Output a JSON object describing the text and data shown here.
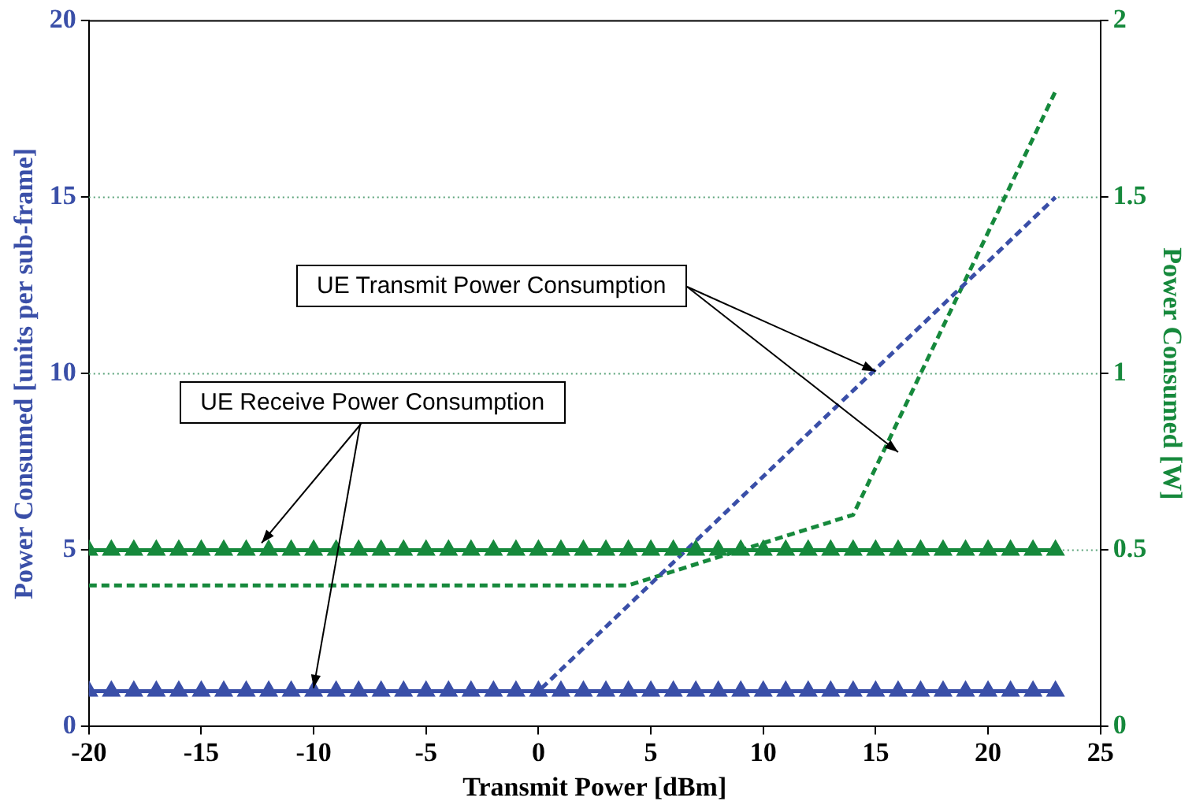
{
  "chart_data": {
    "type": "line",
    "xlabel": "Transmit Power [dBm]",
    "ylabel": "Power Consumed [units per sub-frame]",
    "y2label": "Power Consumed [W]",
    "xlim": [
      -20,
      25
    ],
    "xticks": [
      -20,
      -15,
      -10,
      -5,
      0,
      5,
      10,
      15,
      20,
      25
    ],
    "ylim": [
      0,
      20
    ],
    "yticks": [
      0,
      5,
      10,
      15,
      20
    ],
    "y2lim": [
      0,
      2
    ],
    "y2ticks": [
      0,
      0.5,
      1,
      1.5,
      2
    ],
    "grid": "y",
    "legend": false,
    "annotations": [
      {
        "text": "UE Transmit Power Consumption",
        "x": 15,
        "y": 10
      },
      {
        "text": "UE Receive Power Consumption",
        "x": -10,
        "y": 1
      }
    ],
    "series": [
      {
        "color": "#3a4fa8",
        "axis": "y",
        "marker": "triangle",
        "line_style": "solid",
        "x": [
          -20,
          -19,
          -18,
          -17,
          -16,
          -15,
          -14,
          -13,
          -12,
          -11,
          -10,
          -9,
          -8,
          -7,
          -6,
          -5,
          -4,
          -3,
          -2,
          -1,
          0,
          1,
          2,
          3,
          4,
          5,
          6,
          7,
          8,
          9,
          10,
          11,
          12,
          13,
          14,
          15,
          16,
          17,
          18,
          19,
          20,
          21,
          22,
          23
        ],
        "values": [
          1,
          1,
          1,
          1,
          1,
          1,
          1,
          1,
          1,
          1,
          1,
          1,
          1,
          1,
          1,
          1,
          1,
          1,
          1,
          1,
          1,
          1,
          1,
          1,
          1,
          1,
          1,
          1,
          1,
          1,
          1,
          1,
          1,
          1,
          1,
          1,
          1,
          1,
          1,
          1,
          1,
          1,
          1,
          1
        ]
      },
      {
        "color": "#16893c",
        "axis": "y2",
        "marker": "triangle",
        "line_style": "solid",
        "x": [
          -20,
          -19,
          -18,
          -17,
          -16,
          -15,
          -14,
          -13,
          -12,
          -11,
          -10,
          -9,
          -8,
          -7,
          -6,
          -5,
          -4,
          -3,
          -2,
          -1,
          0,
          1,
          2,
          3,
          4,
          5,
          6,
          7,
          8,
          9,
          10,
          11,
          12,
          13,
          14,
          15,
          16,
          17,
          18,
          19,
          20,
          21,
          22,
          23
        ],
        "values": [
          0.5,
          0.5,
          0.5,
          0.5,
          0.5,
          0.5,
          0.5,
          0.5,
          0.5,
          0.5,
          0.5,
          0.5,
          0.5,
          0.5,
          0.5,
          0.5,
          0.5,
          0.5,
          0.5,
          0.5,
          0.5,
          0.5,
          0.5,
          0.5,
          0.5,
          0.5,
          0.5,
          0.5,
          0.5,
          0.5,
          0.5,
          0.5,
          0.5,
          0.5,
          0.5,
          0.5,
          0.5,
          0.5,
          0.5,
          0.5,
          0.5,
          0.5,
          0.5,
          0.5
        ]
      },
      {
        "color": "#3a4fa8",
        "axis": "y",
        "marker": "none",
        "line_style": "dashed",
        "x": [
          -20,
          0,
          23
        ],
        "values": [
          1,
          1,
          15
        ]
      },
      {
        "color": "#16893c",
        "axis": "y2",
        "marker": "none",
        "line_style": "dashed",
        "x": [
          -20,
          4,
          14,
          23
        ],
        "values": [
          0.4,
          0.4,
          0.6,
          1.8
        ]
      }
    ]
  }
}
